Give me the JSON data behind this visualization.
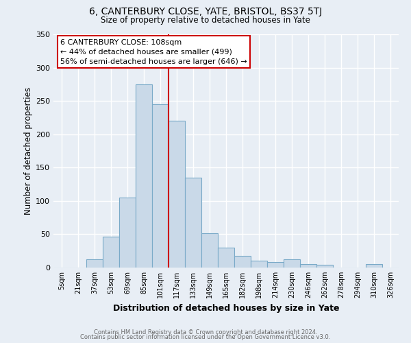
{
  "title": "6, CANTERBURY CLOSE, YATE, BRISTOL, BS37 5TJ",
  "subtitle": "Size of property relative to detached houses in Yate",
  "xlabel": "Distribution of detached houses by size in Yate",
  "ylabel": "Number of detached properties",
  "footer1": "Contains HM Land Registry data © Crown copyright and database right 2024.",
  "footer2": "Contains public sector information licensed under the Open Government Licence v3.0.",
  "categories": [
    "5sqm",
    "21sqm",
    "37sqm",
    "53sqm",
    "69sqm",
    "85sqm",
    "101sqm",
    "117sqm",
    "133sqm",
    "149sqm",
    "165sqm",
    "182sqm",
    "198sqm",
    "214sqm",
    "230sqm",
    "246sqm",
    "262sqm",
    "278sqm",
    "294sqm",
    "310sqm",
    "326sqm"
  ],
  "values": [
    0,
    0,
    12,
    46,
    105,
    275,
    245,
    220,
    135,
    51,
    30,
    17,
    10,
    8,
    12,
    5,
    4,
    0,
    0,
    5,
    0
  ],
  "bar_color": "#c9d9e8",
  "bar_edge_color": "#7aaac8",
  "bg_color": "#e8eef5",
  "grid_color": "#ffffff",
  "vline_color": "#cc0000",
  "vline_index": 6.0,
  "annotation_text": "6 CANTERBURY CLOSE: 108sqm\n← 44% of detached houses are smaller (499)\n56% of semi-detached houses are larger (646) →",
  "annotation_box_color": "#ffffff",
  "annotation_box_edge": "#cc0000",
  "ylim": [
    0,
    350
  ],
  "yticks": [
    0,
    50,
    100,
    150,
    200,
    250,
    300,
    350
  ]
}
